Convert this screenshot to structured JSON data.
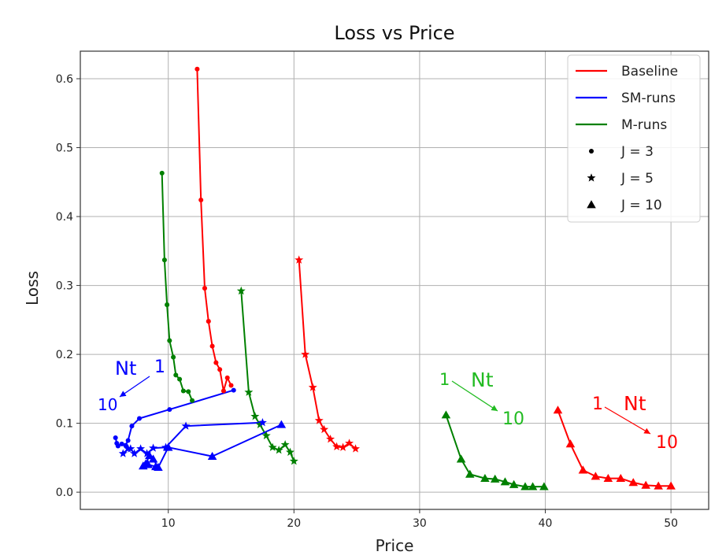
{
  "chart_data": {
    "type": "line",
    "title": "Loss vs  Price",
    "xlabel": "Price",
    "ylabel": "Loss",
    "xlim": [
      3,
      53
    ],
    "ylim": [
      -0.025,
      0.64
    ],
    "xticks": [
      10,
      20,
      30,
      40,
      50
    ],
    "yticks": [
      0.0,
      0.1,
      0.2,
      0.3,
      0.4,
      0.5,
      0.6
    ],
    "grid": true,
    "legend_position": "top-right",
    "legend": [
      {
        "label": "Baseline",
        "kind": "line",
        "color": "#ff0000"
      },
      {
        "label": "SM-runs",
        "kind": "line",
        "color": "#0000ff"
      },
      {
        "label": "M-runs",
        "kind": "line",
        "color": "#008000"
      },
      {
        "label": "J = 3",
        "kind": "marker",
        "marker": "circle"
      },
      {
        "label": "J = 5",
        "kind": "marker",
        "marker": "star"
      },
      {
        "label": "J = 10",
        "kind": "marker",
        "marker": "triangle"
      }
    ],
    "series": [
      {
        "group": "Baseline",
        "color": "#ff0000",
        "marker": "circle",
        "x": [
          12.3,
          12.6,
          12.9,
          13.2,
          13.5,
          13.8,
          14.1,
          14.4,
          14.7,
          15.0
        ],
        "y": [
          0.614,
          0.424,
          0.296,
          0.248,
          0.212,
          0.188,
          0.178,
          0.147,
          0.166,
          0.155
        ]
      },
      {
        "group": "Baseline",
        "color": "#ff0000",
        "marker": "star",
        "x": [
          20.4,
          20.9,
          21.5,
          22.0,
          22.4,
          22.9,
          23.4,
          23.9,
          24.4,
          24.9
        ],
        "y": [
          0.337,
          0.2,
          0.152,
          0.104,
          0.091,
          0.077,
          0.066,
          0.065,
          0.071,
          0.063
        ]
      },
      {
        "group": "Baseline",
        "color": "#ff0000",
        "marker": "triangle",
        "x": [
          41.0,
          42.0,
          43.0,
          44.0,
          45.0,
          46.0,
          47.0,
          48.0,
          49.0,
          50.0
        ],
        "y": [
          0.119,
          0.07,
          0.032,
          0.023,
          0.02,
          0.02,
          0.014,
          0.01,
          0.009,
          0.009
        ]
      },
      {
        "group": "M-runs",
        "color": "#008000",
        "marker": "circle",
        "x": [
          9.5,
          9.7,
          9.9,
          10.1,
          10.4,
          10.6,
          10.9,
          11.2,
          11.6,
          11.9
        ],
        "y": [
          0.463,
          0.337,
          0.272,
          0.22,
          0.196,
          0.17,
          0.164,
          0.147,
          0.146,
          0.133
        ]
      },
      {
        "group": "M-runs",
        "color": "#008000",
        "marker": "star",
        "x": [
          15.8,
          16.4,
          16.9,
          17.3,
          17.8,
          18.3,
          18.8,
          19.3,
          19.7,
          20.0
        ],
        "y": [
          0.292,
          0.145,
          0.11,
          0.098,
          0.082,
          0.065,
          0.061,
          0.069,
          0.058,
          0.045
        ]
      },
      {
        "group": "M-runs",
        "color": "#008000",
        "marker": "triangle",
        "x": [
          32.1,
          33.3,
          34.0,
          35.2,
          36.0,
          36.8,
          37.5,
          38.4,
          39.0,
          39.9
        ],
        "y": [
          0.112,
          0.048,
          0.026,
          0.02,
          0.019,
          0.015,
          0.011,
          0.008,
          0.008,
          0.008
        ]
      },
      {
        "group": "SM-runs",
        "color": "#0000ff",
        "marker": "circle",
        "x": [
          15.2,
          10.1,
          7.7,
          7.1,
          6.8,
          6.6,
          6.3,
          6.0,
          5.9,
          5.8
        ],
        "y": [
          0.148,
          0.12,
          0.107,
          0.096,
          0.075,
          0.068,
          0.07,
          0.067,
          0.071,
          0.079
        ]
      },
      {
        "group": "SM-runs",
        "color": "#0000ff",
        "marker": "star",
        "x": [
          17.5,
          11.4,
          9.8,
          8.8,
          8.3,
          7.8,
          7.3,
          7.0,
          6.8,
          6.4
        ],
        "y": [
          0.101,
          0.096,
          0.065,
          0.064,
          0.056,
          0.063,
          0.056,
          0.063,
          0.063,
          0.056
        ]
      },
      {
        "group": "SM-runs",
        "color": "#0000ff",
        "marker": "triangle",
        "x": [
          19.0,
          13.5,
          10.0,
          9.2,
          8.8,
          8.5,
          8.2,
          8.0,
          8.4,
          9.0
        ],
        "y": [
          0.098,
          0.052,
          0.065,
          0.036,
          0.048,
          0.053,
          0.041,
          0.038,
          0.04,
          0.037
        ]
      }
    ],
    "annotations": [
      {
        "color": "#0000ff",
        "labels": [
          "Nt",
          "1",
          "10"
        ]
      },
      {
        "color": "#22bb22",
        "labels": [
          "1",
          "Nt",
          "10"
        ]
      },
      {
        "color": "#ff0000",
        "labels": [
          "1",
          "Nt",
          "10"
        ]
      }
    ]
  }
}
